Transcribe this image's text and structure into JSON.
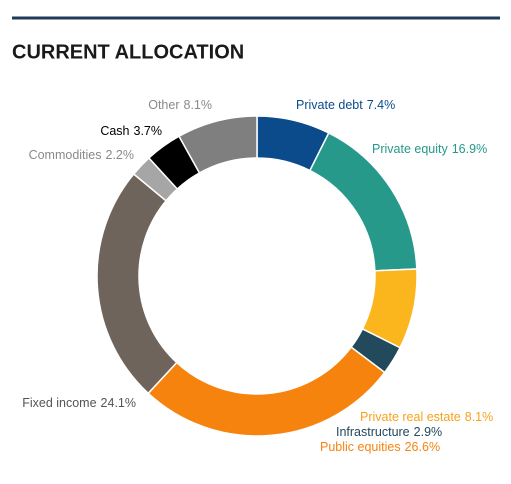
{
  "chart_data": {
    "type": "donut",
    "title": "CURRENT ALLOCATION",
    "categories": [
      "Private debt",
      "Private equity",
      "Private real estate",
      "Infrastructure",
      "Public equities",
      "Fixed income",
      "Commodities",
      "Cash",
      "Other"
    ],
    "values": [
      7.4,
      16.9,
      8.1,
      2.9,
      26.6,
      24.1,
      2.2,
      3.7,
      8.1
    ],
    "value_labels": [
      "7.4%",
      "16.9%",
      "8.1%",
      "2.9%",
      "26.6%",
      "24.1%",
      "2.2%",
      "3.7%",
      "8.1%"
    ],
    "colors": [
      "#0b4a8b",
      "#26998a",
      "#fbb61d",
      "#23495c",
      "#f7830f",
      "#6e645b",
      "#a6a6a6",
      "#000000",
      "#7f7f7f"
    ],
    "label_colors": [
      "#0b4a8b",
      "#26998a",
      "#f7a21b",
      "#23495c",
      "#f7830f",
      "#555555",
      "#8a8a8a",
      "#000000",
      "#8a8a8a"
    ]
  }
}
